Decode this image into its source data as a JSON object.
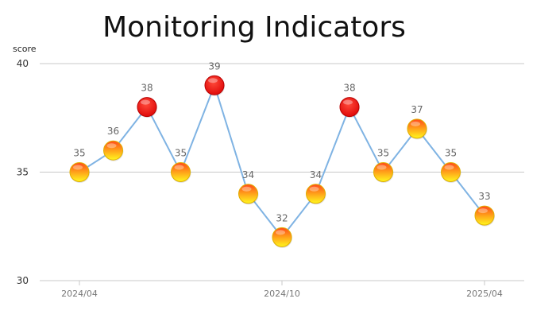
{
  "chart_data": {
    "type": "line",
    "title": "Monitoring Indicators",
    "xlabel": "",
    "ylabel": "score",
    "ylim": [
      30,
      40
    ],
    "yticks": [
      30,
      35,
      40
    ],
    "grid": true,
    "x_tick_labels": [
      "2024/04",
      "2024/10",
      "2025/04"
    ],
    "x_tick_indices": [
      0,
      6,
      12
    ],
    "x": [
      "2024/04",
      "2024/05",
      "2024/06",
      "2024/07",
      "2024/08",
      "2024/09",
      "2024/10",
      "2024/11",
      "2024/12",
      "2025/01",
      "2025/02",
      "2025/03",
      "2025/04"
    ],
    "series": [
      {
        "values": [
          35,
          36,
          38,
          35,
          39,
          34,
          32,
          34,
          38,
          35,
          37,
          35,
          33
        ]
      }
    ],
    "highlight_threshold": 38,
    "colors": {
      "line": "#7fb3e3",
      "marker_normal_top": "#ff3b1f",
      "marker_normal_bottom": "#ffe81a",
      "marker_high": "#ee1111",
      "grid": "#c8c8c8"
    }
  }
}
